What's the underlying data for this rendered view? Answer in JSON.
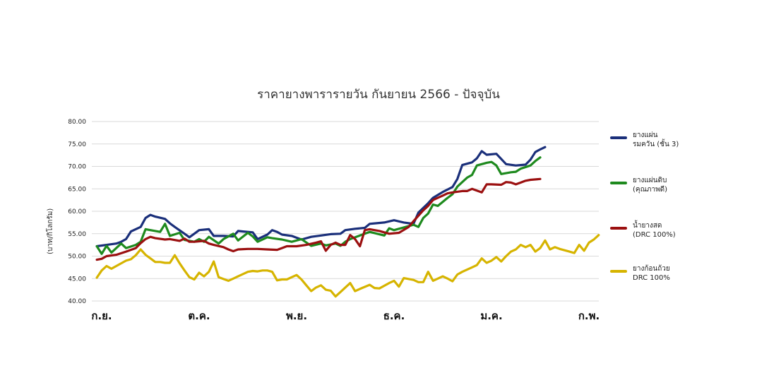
{
  "chart_data": {
    "type": "line",
    "title": "ราคายางพารารายวัน กันยายน 2566 - ปัจจุบัน",
    "ylabel": "(บาท/กิโลกรัม)",
    "ylim": [
      40,
      80
    ],
    "yticks": [
      "40.00",
      "45.00",
      "50.00",
      "55.00",
      "60.00",
      "65.00",
      "70.00",
      "75.00",
      "80.00"
    ],
    "xlim": [
      0,
      100
    ],
    "xticks": [
      {
        "label": "ก.ย.",
        "x": 0
      },
      {
        "label": "ต.ค.",
        "x": 20
      },
      {
        "label": "พ.ย.",
        "x": 40
      },
      {
        "label": "ธ.ค.",
        "x": 60
      },
      {
        "label": "ม.ค.",
        "x": 80
      },
      {
        "label": "ก.พ.",
        "x": 100
      }
    ],
    "grid": true,
    "legend_position": "right",
    "series": [
      {
        "name": "ยางแผ่น\nรมควัน (ชั้น 3)",
        "color": "#1a2f7a",
        "points": [
          [
            -1,
            52.2
          ],
          [
            1,
            52.5
          ],
          [
            3,
            52.8
          ],
          [
            4,
            53.2
          ],
          [
            5,
            53.8
          ],
          [
            6,
            55.5
          ],
          [
            8,
            56.5
          ],
          [
            9,
            58.5
          ],
          [
            10,
            59.2
          ],
          [
            11,
            58.8
          ],
          [
            13,
            58.3
          ],
          [
            14,
            57.3
          ],
          [
            15,
            56.5
          ],
          [
            17,
            55
          ],
          [
            18,
            54.2
          ],
          [
            19,
            55
          ],
          [
            20,
            55.8
          ],
          [
            22,
            56
          ],
          [
            23,
            54.5
          ],
          [
            25,
            54.5
          ],
          [
            27,
            54.4
          ],
          [
            28,
            55.6
          ],
          [
            29,
            55.5
          ],
          [
            31,
            55.3
          ],
          [
            32,
            53.8
          ],
          [
            34,
            54.8
          ],
          [
            35,
            55.8
          ],
          [
            36,
            55.4
          ],
          [
            37,
            54.8
          ],
          [
            39,
            54.5
          ],
          [
            41,
            53.7
          ],
          [
            43,
            54.3
          ],
          [
            45,
            54.6
          ],
          [
            47,
            54.9
          ],
          [
            49,
            55
          ],
          [
            50,
            55.8
          ],
          [
            52,
            56.1
          ],
          [
            54,
            56.3
          ],
          [
            55,
            57.2
          ],
          [
            58,
            57.5
          ],
          [
            60,
            58
          ],
          [
            62,
            57.5
          ],
          [
            64,
            57.2
          ],
          [
            65,
            59.7
          ],
          [
            67,
            61.8
          ],
          [
            68,
            63
          ],
          [
            70,
            64.3
          ],
          [
            72,
            65.4
          ],
          [
            73,
            67.2
          ],
          [
            74,
            70.3
          ],
          [
            76,
            70.9
          ],
          [
            77,
            71.8
          ],
          [
            78,
            73.4
          ],
          [
            79,
            72.6
          ],
          [
            81,
            72.8
          ],
          [
            83,
            70.5
          ],
          [
            85,
            70.2
          ],
          [
            87,
            70.4
          ],
          [
            88,
            71.5
          ],
          [
            89,
            73.2
          ],
          [
            90,
            73.8
          ],
          [
            91,
            74.3
          ]
        ]
      },
      {
        "name": "ยางแผ่นดิบ\n(คุณภาพดี)",
        "color": "#1e8a1e",
        "points": [
          [
            -1,
            52.2
          ],
          [
            0,
            50.5
          ],
          [
            1,
            52.3
          ],
          [
            2,
            50.8
          ],
          [
            4,
            52.8
          ],
          [
            5,
            51.8
          ],
          [
            7,
            52.5
          ],
          [
            8,
            53.2
          ],
          [
            9,
            56
          ],
          [
            10,
            55.8
          ],
          [
            12,
            55.4
          ],
          [
            13,
            57.2
          ],
          [
            14,
            54.5
          ],
          [
            16,
            55.2
          ],
          [
            17,
            53.6
          ],
          [
            19,
            53.2
          ],
          [
            20,
            53.8
          ],
          [
            21,
            53.2
          ],
          [
            22,
            54.3
          ],
          [
            24,
            52.8
          ],
          [
            25,
            53.8
          ],
          [
            27,
            55
          ],
          [
            28,
            53.5
          ],
          [
            30,
            55.2
          ],
          [
            31,
            54.4
          ],
          [
            32,
            53.2
          ],
          [
            34,
            54.2
          ],
          [
            35,
            54
          ],
          [
            37,
            53.7
          ],
          [
            39,
            53.2
          ],
          [
            41,
            53.8
          ],
          [
            43,
            52.3
          ],
          [
            45,
            52.8
          ],
          [
            46,
            52.4
          ],
          [
            48,
            52.8
          ],
          [
            49,
            52.3
          ],
          [
            50,
            53.2
          ],
          [
            51,
            53.8
          ],
          [
            53,
            54.6
          ],
          [
            55,
            55.4
          ],
          [
            58,
            54.6
          ],
          [
            59,
            56.2
          ],
          [
            60,
            55.8
          ],
          [
            62,
            56.4
          ],
          [
            64,
            57
          ],
          [
            65,
            56.5
          ],
          [
            66,
            58.5
          ],
          [
            67,
            59.5
          ],
          [
            68,
            61.5
          ],
          [
            69,
            61.2
          ],
          [
            71,
            63
          ],
          [
            72,
            63.8
          ],
          [
            73,
            65.5
          ],
          [
            75,
            67.5
          ],
          [
            76,
            68.1
          ],
          [
            77,
            70.2
          ],
          [
            79,
            70.8
          ],
          [
            80,
            71
          ],
          [
            81,
            70.2
          ],
          [
            82,
            68.3
          ],
          [
            84,
            68.7
          ],
          [
            85,
            68.8
          ],
          [
            86,
            69.5
          ],
          [
            88,
            70.2
          ],
          [
            89,
            71.2
          ],
          [
            90,
            72
          ]
        ]
      },
      {
        "name": "น้ำยางสด\n(DRC 100%)",
        "color": "#9b1010",
        "points": [
          [
            -1,
            49.2
          ],
          [
            0,
            49.4
          ],
          [
            1,
            50
          ],
          [
            3,
            50.3
          ],
          [
            5,
            51
          ],
          [
            7,
            51.8
          ],
          [
            8,
            52.9
          ],
          [
            9,
            53.8
          ],
          [
            10,
            54.3
          ],
          [
            11,
            54
          ],
          [
            13,
            53.7
          ],
          [
            14,
            53.8
          ],
          [
            16,
            53.4
          ],
          [
            17,
            53.9
          ],
          [
            18,
            53.2
          ],
          [
            19,
            53.2
          ],
          [
            21,
            53.4
          ],
          [
            22,
            52.8
          ],
          [
            23,
            52.5
          ],
          [
            25,
            52
          ],
          [
            26,
            51.5
          ],
          [
            27,
            51.1
          ],
          [
            28,
            51.5
          ],
          [
            30,
            51.6
          ],
          [
            32,
            51.6
          ],
          [
            34,
            51.5
          ],
          [
            36,
            51.4
          ],
          [
            37,
            51.8
          ],
          [
            38,
            52.2
          ],
          [
            40,
            52.2
          ],
          [
            42,
            52.5
          ],
          [
            44,
            53
          ],
          [
            45,
            53.3
          ],
          [
            46,
            51.2
          ],
          [
            47,
            52.5
          ],
          [
            48,
            53
          ],
          [
            49,
            52.5
          ],
          [
            50,
            52.5
          ],
          [
            51,
            54.7
          ],
          [
            52,
            53.8
          ],
          [
            53,
            52.2
          ],
          [
            54,
            55.8
          ],
          [
            55,
            56
          ],
          [
            57,
            55.6
          ],
          [
            59,
            55
          ],
          [
            61,
            55.2
          ],
          [
            63,
            56.5
          ],
          [
            64,
            57.8
          ],
          [
            66,
            60.2
          ],
          [
            67,
            61.2
          ],
          [
            68,
            62.5
          ],
          [
            70,
            63.5
          ],
          [
            71,
            64
          ],
          [
            72,
            64.2
          ],
          [
            74,
            64.5
          ],
          [
            75,
            64.5
          ],
          [
            76,
            65
          ],
          [
            78,
            64.2
          ],
          [
            79,
            66
          ],
          [
            80,
            66
          ],
          [
            82,
            65.9
          ],
          [
            83,
            66.5
          ],
          [
            84,
            66.4
          ],
          [
            85,
            66
          ],
          [
            86,
            66.4
          ],
          [
            87,
            66.8
          ],
          [
            88,
            67
          ],
          [
            90,
            67.2
          ]
        ]
      },
      {
        "name": "ยางก้อนถ้วย\nDRC 100%",
        "color": "#d6b400",
        "points": [
          [
            -1,
            45.2
          ],
          [
            0,
            46.8
          ],
          [
            1,
            47.8
          ],
          [
            2,
            47.2
          ],
          [
            3,
            47.8
          ],
          [
            5,
            49
          ],
          [
            6,
            49.3
          ],
          [
            7,
            50.2
          ],
          [
            8,
            51.5
          ],
          [
            9,
            50.3
          ],
          [
            10,
            49.5
          ],
          [
            11,
            48.7
          ],
          [
            12,
            48.7
          ],
          [
            13,
            48.5
          ],
          [
            14,
            48.5
          ],
          [
            15,
            50.2
          ],
          [
            16,
            48.4
          ],
          [
            17,
            46.8
          ],
          [
            18,
            45.3
          ],
          [
            19,
            44.8
          ],
          [
            20,
            46.3
          ],
          [
            21,
            45.5
          ],
          [
            22,
            46.5
          ],
          [
            23,
            48.8
          ],
          [
            24,
            45.3
          ],
          [
            25,
            44.9
          ],
          [
            26,
            44.5
          ],
          [
            27,
            45
          ],
          [
            28,
            45.5
          ],
          [
            30,
            46.5
          ],
          [
            31,
            46.7
          ],
          [
            32,
            46.6
          ],
          [
            33,
            46.8
          ],
          [
            34,
            46.8
          ],
          [
            35,
            46.5
          ],
          [
            36,
            44.6
          ],
          [
            37,
            44.8
          ],
          [
            38,
            44.8
          ],
          [
            39,
            45.3
          ],
          [
            40,
            45.8
          ],
          [
            41,
            44.8
          ],
          [
            42,
            43.5
          ],
          [
            43,
            42.2
          ],
          [
            44,
            43
          ],
          [
            45,
            43.5
          ],
          [
            46,
            42.5
          ],
          [
            47,
            42.3
          ],
          [
            48,
            41
          ],
          [
            49,
            42
          ],
          [
            50,
            43
          ],
          [
            51,
            44
          ],
          [
            52,
            42.2
          ],
          [
            53,
            42.7
          ],
          [
            55,
            43.6
          ],
          [
            56,
            42.9
          ],
          [
            57,
            42.8
          ],
          [
            59,
            44
          ],
          [
            60,
            44.5
          ],
          [
            61,
            43.2
          ],
          [
            62,
            45.1
          ],
          [
            64,
            44.7
          ],
          [
            65,
            44.2
          ],
          [
            66,
            44.2
          ],
          [
            67,
            46.5
          ],
          [
            68,
            44.5
          ],
          [
            70,
            45.5
          ],
          [
            71,
            45
          ],
          [
            72,
            44.4
          ],
          [
            73,
            45.9
          ],
          [
            74,
            46.5
          ],
          [
            76,
            47.5
          ],
          [
            77,
            48
          ],
          [
            78,
            49.5
          ],
          [
            79,
            48.5
          ],
          [
            80,
            49
          ],
          [
            81,
            49.8
          ],
          [
            82,
            48.8
          ],
          [
            83,
            50
          ],
          [
            84,
            51
          ],
          [
            85,
            51.5
          ],
          [
            86,
            52.5
          ],
          [
            87,
            52
          ],
          [
            88,
            52.5
          ],
          [
            89,
            51
          ],
          [
            90,
            51.8
          ],
          [
            91,
            53.5
          ],
          [
            92,
            51.5
          ],
          [
            93,
            52
          ],
          [
            94,
            51.6
          ],
          [
            96,
            51
          ],
          [
            97,
            50.7
          ],
          [
            98,
            52.5
          ],
          [
            99,
            51.2
          ],
          [
            100,
            53
          ],
          [
            101,
            53.7
          ],
          [
            102,
            54.7
          ]
        ]
      }
    ]
  }
}
